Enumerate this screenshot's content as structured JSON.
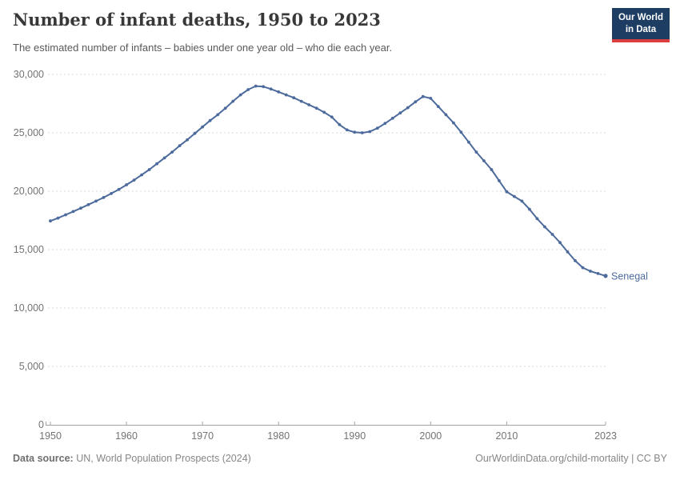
{
  "header": {
    "title": "Number of infant deaths, 1950 to 2023",
    "subtitle": "The estimated number of infants – babies under one year old – who die each year.",
    "logo": {
      "line1": "Our World",
      "line2": "in Data"
    }
  },
  "chart_data": {
    "type": "line",
    "title": "Number of infant deaths, 1950 to 2023",
    "xlabel": "",
    "ylabel": "",
    "xlim": [
      1950,
      2023
    ],
    "ylim": [
      0,
      30000
    ],
    "x_ticks": [
      1950,
      1960,
      1970,
      1980,
      1990,
      2000,
      2010,
      2023
    ],
    "y_ticks": [
      0,
      5000,
      10000,
      15000,
      20000,
      25000,
      30000
    ],
    "grid": "horizontal-dashed",
    "legend_position": "end-of-line-label",
    "line_color": "#4c6a9c",
    "axis_text_color": "#737373",
    "grid_color": "#dadada",
    "axis_line_color": "#a3a3a3",
    "series": [
      {
        "name": "Senegal",
        "color": "#4c6a9c",
        "x": [
          1950,
          1951,
          1952,
          1953,
          1954,
          1955,
          1956,
          1957,
          1958,
          1959,
          1960,
          1961,
          1962,
          1963,
          1964,
          1965,
          1966,
          1967,
          1968,
          1969,
          1970,
          1971,
          1972,
          1973,
          1974,
          1975,
          1976,
          1977,
          1978,
          1979,
          1980,
          1981,
          1982,
          1983,
          1984,
          1985,
          1986,
          1987,
          1988,
          1989,
          1990,
          1991,
          1992,
          1993,
          1994,
          1995,
          1996,
          1997,
          1998,
          1999,
          2000,
          2001,
          2002,
          2003,
          2004,
          2005,
          2006,
          2007,
          2008,
          2009,
          2010,
          2011,
          2012,
          2013,
          2014,
          2015,
          2016,
          2017,
          2018,
          2019,
          2020,
          2021,
          2022,
          2023
        ],
        "values": [
          17450,
          17700,
          17980,
          18260,
          18550,
          18850,
          19150,
          19460,
          19800,
          20150,
          20550,
          20950,
          21400,
          21850,
          22350,
          22850,
          23350,
          23900,
          24400,
          24950,
          25500,
          26050,
          26550,
          27100,
          27700,
          28250,
          28700,
          29000,
          28950,
          28750,
          28500,
          28250,
          28000,
          27700,
          27400,
          27100,
          26750,
          26350,
          25700,
          25250,
          25050,
          25000,
          25100,
          25400,
          25800,
          26250,
          26700,
          27150,
          27650,
          28100,
          27950,
          27250,
          26550,
          25850,
          25050,
          24200,
          23350,
          22600,
          21850,
          20900,
          19950,
          19550,
          19150,
          18450,
          17650,
          16950,
          16300,
          15600,
          14800,
          14050,
          13450,
          13150,
          12950,
          12750
        ]
      }
    ]
  },
  "footer": {
    "source_label": "Data source:",
    "source_text": " UN, World Population Prospects (2024)",
    "link_text": "OurWorldinData.org/child-mortality | CC BY"
  }
}
